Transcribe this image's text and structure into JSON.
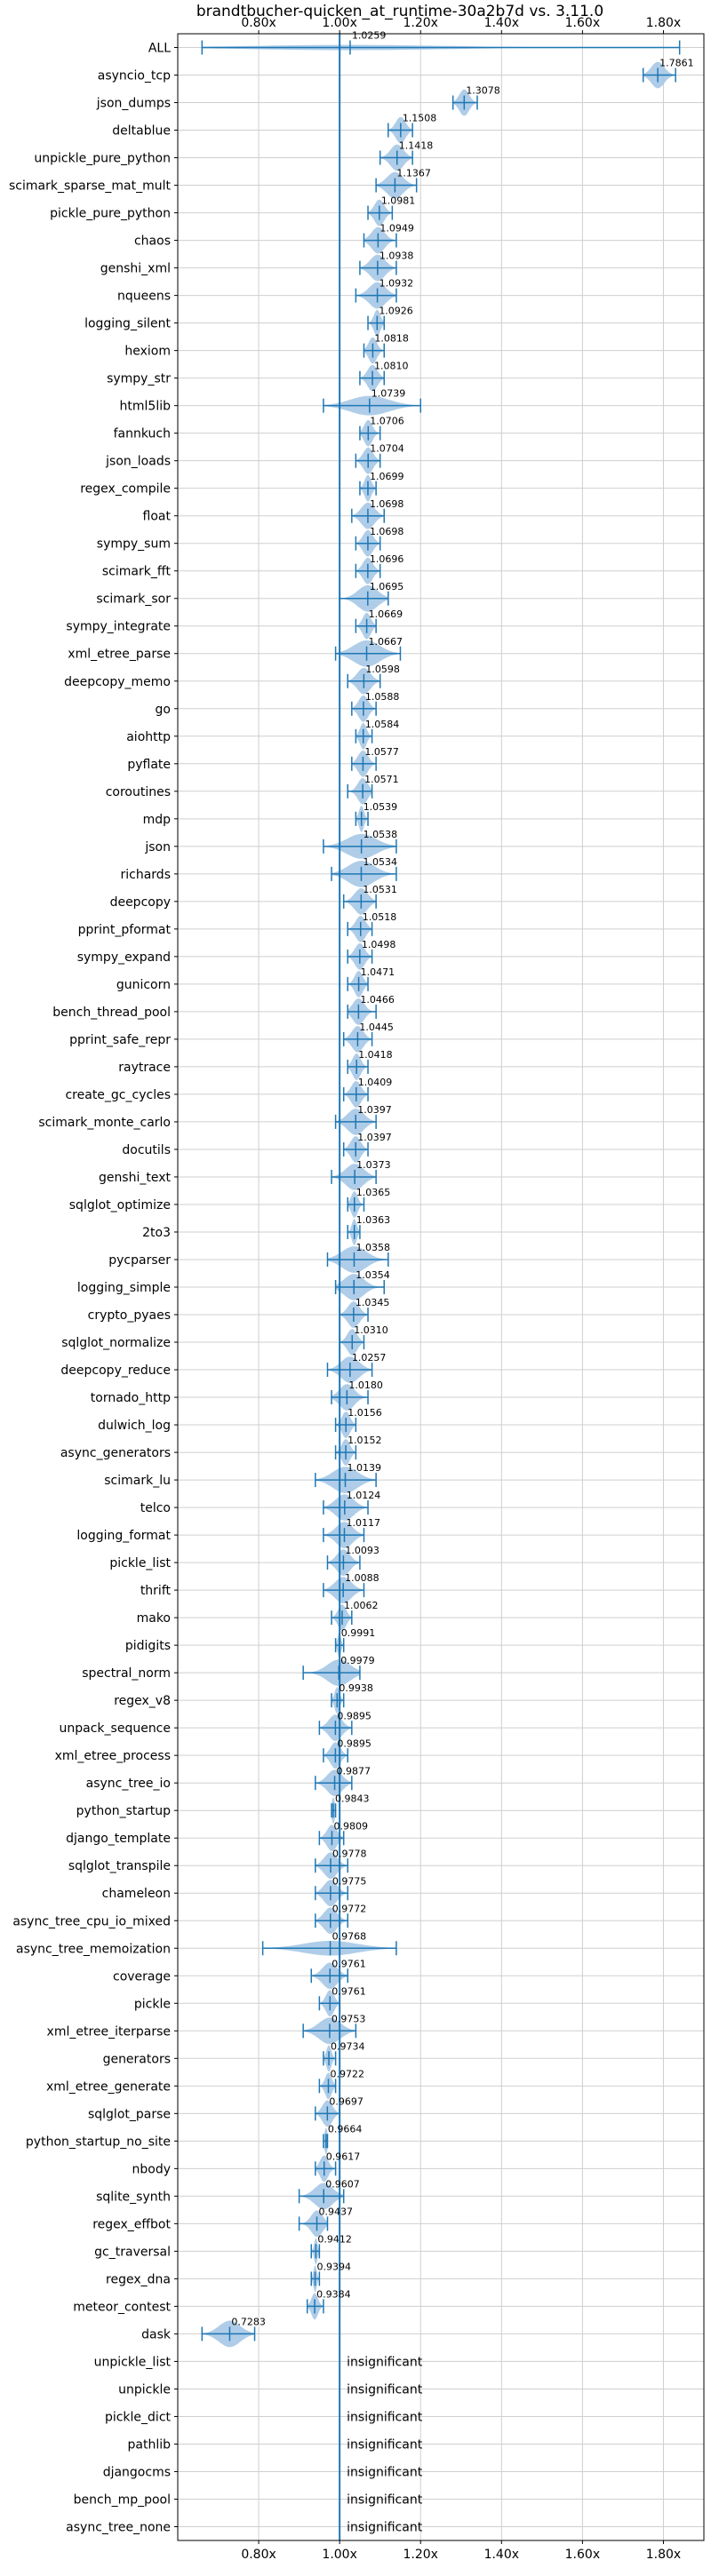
{
  "chart_data": {
    "type": "violin",
    "title": "brandtbucher-quicken_at_runtime-30a2b7d vs. 3.11.0",
    "xlim": [
      0.6,
      1.9
    ],
    "xticks": [
      "0.80x",
      "1.00x",
      "1.20x",
      "1.40x",
      "1.60x",
      "1.80x"
    ],
    "xtick_values": [
      0.8,
      1.0,
      1.2,
      1.4,
      1.6,
      1.8
    ],
    "reference_line": 1.0,
    "grid": true,
    "color": "#1f77b4",
    "fill_color": "#a6c8e6",
    "benchmarks": [
      {
        "name": "ALL",
        "label": "1.0259",
        "value": 1.0259,
        "min": 0.66,
        "max": 1.84
      },
      {
        "name": "asyncio_tcp",
        "label": "1.7861",
        "value": 1.7861,
        "min": 1.75,
        "max": 1.83
      },
      {
        "name": "json_dumps",
        "label": "1.3078",
        "value": 1.3078,
        "min": 1.28,
        "max": 1.34
      },
      {
        "name": "deltablue",
        "label": "1.1508",
        "value": 1.1508,
        "min": 1.12,
        "max": 1.18
      },
      {
        "name": "unpickle_pure_python",
        "label": "1.1418",
        "value": 1.1418,
        "min": 1.1,
        "max": 1.18
      },
      {
        "name": "scimark_sparse_mat_mult",
        "label": "1.1367",
        "value": 1.1367,
        "min": 1.09,
        "max": 1.19
      },
      {
        "name": "pickle_pure_python",
        "label": "1.0981",
        "value": 1.0981,
        "min": 1.07,
        "max": 1.13
      },
      {
        "name": "chaos",
        "label": "1.0949",
        "value": 1.0949,
        "min": 1.06,
        "max": 1.14
      },
      {
        "name": "genshi_xml",
        "label": "1.0938",
        "value": 1.0938,
        "min": 1.05,
        "max": 1.14
      },
      {
        "name": "nqueens",
        "label": "1.0932",
        "value": 1.0932,
        "min": 1.04,
        "max": 1.14
      },
      {
        "name": "logging_silent",
        "label": "1.0926",
        "value": 1.0926,
        "min": 1.07,
        "max": 1.11
      },
      {
        "name": "hexiom",
        "label": "1.0818",
        "value": 1.0818,
        "min": 1.06,
        "max": 1.11
      },
      {
        "name": "sympy_str",
        "label": "1.0810",
        "value": 1.081,
        "min": 1.05,
        "max": 1.11
      },
      {
        "name": "html5lib",
        "label": "1.0739",
        "value": 1.0739,
        "min": 0.96,
        "max": 1.2
      },
      {
        "name": "fannkuch",
        "label": "1.0706",
        "value": 1.0706,
        "min": 1.05,
        "max": 1.1
      },
      {
        "name": "json_loads",
        "label": "1.0704",
        "value": 1.0704,
        "min": 1.04,
        "max": 1.1
      },
      {
        "name": "regex_compile",
        "label": "1.0699",
        "value": 1.0699,
        "min": 1.05,
        "max": 1.09
      },
      {
        "name": "float",
        "label": "1.0698",
        "value": 1.0698,
        "min": 1.03,
        "max": 1.11
      },
      {
        "name": "sympy_sum",
        "label": "1.0698",
        "value": 1.0698,
        "min": 1.04,
        "max": 1.1
      },
      {
        "name": "scimark_fft",
        "label": "1.0696",
        "value": 1.0696,
        "min": 1.04,
        "max": 1.1
      },
      {
        "name": "scimark_sor",
        "label": "1.0695",
        "value": 1.0695,
        "min": 1.0,
        "max": 1.12
      },
      {
        "name": "sympy_integrate",
        "label": "1.0669",
        "value": 1.0669,
        "min": 1.04,
        "max": 1.09
      },
      {
        "name": "xml_etree_parse",
        "label": "1.0667",
        "value": 1.0667,
        "min": 0.99,
        "max": 1.15
      },
      {
        "name": "deepcopy_memo",
        "label": "1.0598",
        "value": 1.0598,
        "min": 1.02,
        "max": 1.1
      },
      {
        "name": "go",
        "label": "1.0588",
        "value": 1.0588,
        "min": 1.03,
        "max": 1.09
      },
      {
        "name": "aiohttp",
        "label": "1.0584",
        "value": 1.0584,
        "min": 1.04,
        "max": 1.08
      },
      {
        "name": "pyflate",
        "label": "1.0577",
        "value": 1.0577,
        "min": 1.03,
        "max": 1.09
      },
      {
        "name": "coroutines",
        "label": "1.0571",
        "value": 1.0571,
        "min": 1.02,
        "max": 1.08
      },
      {
        "name": "mdp",
        "label": "1.0539",
        "value": 1.0539,
        "min": 1.04,
        "max": 1.07
      },
      {
        "name": "json",
        "label": "1.0538",
        "value": 1.0538,
        "min": 0.96,
        "max": 1.14
      },
      {
        "name": "richards",
        "label": "1.0534",
        "value": 1.0534,
        "min": 0.98,
        "max": 1.14
      },
      {
        "name": "deepcopy",
        "label": "1.0531",
        "value": 1.0531,
        "min": 1.01,
        "max": 1.09
      },
      {
        "name": "pprint_pformat",
        "label": "1.0518",
        "value": 1.0518,
        "min": 1.02,
        "max": 1.08
      },
      {
        "name": "sympy_expand",
        "label": "1.0498",
        "value": 1.0498,
        "min": 1.02,
        "max": 1.08
      },
      {
        "name": "gunicorn",
        "label": "1.0471",
        "value": 1.0471,
        "min": 1.02,
        "max": 1.07
      },
      {
        "name": "bench_thread_pool",
        "label": "1.0466",
        "value": 1.0466,
        "min": 1.02,
        "max": 1.09
      },
      {
        "name": "pprint_safe_repr",
        "label": "1.0445",
        "value": 1.0445,
        "min": 1.01,
        "max": 1.08
      },
      {
        "name": "raytrace",
        "label": "1.0418",
        "value": 1.0418,
        "min": 1.02,
        "max": 1.07
      },
      {
        "name": "create_gc_cycles",
        "label": "1.0409",
        "value": 1.0409,
        "min": 1.01,
        "max": 1.07
      },
      {
        "name": "scimark_monte_carlo",
        "label": "1.0397",
        "value": 1.0397,
        "min": 0.99,
        "max": 1.09
      },
      {
        "name": "docutils",
        "label": "1.0397",
        "value": 1.0397,
        "min": 1.01,
        "max": 1.07
      },
      {
        "name": "genshi_text",
        "label": "1.0373",
        "value": 1.0373,
        "min": 0.98,
        "max": 1.09
      },
      {
        "name": "sqlglot_optimize",
        "label": "1.0365",
        "value": 1.0365,
        "min": 1.02,
        "max": 1.06
      },
      {
        "name": "2to3",
        "label": "1.0363",
        "value": 1.0363,
        "min": 1.02,
        "max": 1.05
      },
      {
        "name": "pycparser",
        "label": "1.0358",
        "value": 1.0358,
        "min": 0.97,
        "max": 1.12
      },
      {
        "name": "logging_simple",
        "label": "1.0354",
        "value": 1.0354,
        "min": 0.99,
        "max": 1.11
      },
      {
        "name": "crypto_pyaes",
        "label": "1.0345",
        "value": 1.0345,
        "min": 1.0,
        "max": 1.07
      },
      {
        "name": "sqlglot_normalize",
        "label": "1.0310",
        "value": 1.031,
        "min": 1.0,
        "max": 1.06
      },
      {
        "name": "deepcopy_reduce",
        "label": "1.0257",
        "value": 1.0257,
        "min": 0.97,
        "max": 1.08
      },
      {
        "name": "tornado_http",
        "label": "1.0180",
        "value": 1.018,
        "min": 0.98,
        "max": 1.07
      },
      {
        "name": "dulwich_log",
        "label": "1.0156",
        "value": 1.0156,
        "min": 0.99,
        "max": 1.04
      },
      {
        "name": "async_generators",
        "label": "1.0152",
        "value": 1.0152,
        "min": 0.99,
        "max": 1.04
      },
      {
        "name": "scimark_lu",
        "label": "1.0139",
        "value": 1.0139,
        "min": 0.94,
        "max": 1.09
      },
      {
        "name": "telco",
        "label": "1.0124",
        "value": 1.0124,
        "min": 0.96,
        "max": 1.07
      },
      {
        "name": "logging_format",
        "label": "1.0117",
        "value": 1.0117,
        "min": 0.96,
        "max": 1.06
      },
      {
        "name": "pickle_list",
        "label": "1.0093",
        "value": 1.0093,
        "min": 0.97,
        "max": 1.05
      },
      {
        "name": "thrift",
        "label": "1.0088",
        "value": 1.0088,
        "min": 0.96,
        "max": 1.06
      },
      {
        "name": "mako",
        "label": "1.0062",
        "value": 1.0062,
        "min": 0.98,
        "max": 1.03
      },
      {
        "name": "pidigits",
        "label": "0.9991",
        "value": 0.9991,
        "min": 0.99,
        "max": 1.01
      },
      {
        "name": "spectral_norm",
        "label": "0.9979",
        "value": 0.9979,
        "min": 0.91,
        "max": 1.05
      },
      {
        "name": "regex_v8",
        "label": "0.9938",
        "value": 0.9938,
        "min": 0.98,
        "max": 1.01
      },
      {
        "name": "unpack_sequence",
        "label": "0.9895",
        "value": 0.9895,
        "min": 0.95,
        "max": 1.03
      },
      {
        "name": "xml_etree_process",
        "label": "0.9895",
        "value": 0.9895,
        "min": 0.96,
        "max": 1.02
      },
      {
        "name": "async_tree_io",
        "label": "0.9877",
        "value": 0.9877,
        "min": 0.94,
        "max": 1.03
      },
      {
        "name": "python_startup",
        "label": "0.9843",
        "value": 0.9843,
        "min": 0.98,
        "max": 0.99
      },
      {
        "name": "django_template",
        "label": "0.9809",
        "value": 0.9809,
        "min": 0.95,
        "max": 1.01
      },
      {
        "name": "sqlglot_transpile",
        "label": "0.9778",
        "value": 0.9778,
        "min": 0.94,
        "max": 1.02
      },
      {
        "name": "chameleon",
        "label": "0.9775",
        "value": 0.9775,
        "min": 0.94,
        "max": 1.02
      },
      {
        "name": "async_tree_cpu_io_mixed",
        "label": "0.9772",
        "value": 0.9772,
        "min": 0.94,
        "max": 1.02
      },
      {
        "name": "async_tree_memoization",
        "label": "0.9768",
        "value": 0.9768,
        "min": 0.81,
        "max": 1.14
      },
      {
        "name": "coverage",
        "label": "0.9761",
        "value": 0.9761,
        "min": 0.93,
        "max": 1.02
      },
      {
        "name": "pickle",
        "label": "0.9761",
        "value": 0.9761,
        "min": 0.95,
        "max": 1.0
      },
      {
        "name": "xml_etree_iterparse",
        "label": "0.9753",
        "value": 0.9753,
        "min": 0.91,
        "max": 1.04
      },
      {
        "name": "generators",
        "label": "0.9734",
        "value": 0.9734,
        "min": 0.96,
        "max": 0.99
      },
      {
        "name": "xml_etree_generate",
        "label": "0.9722",
        "value": 0.9722,
        "min": 0.95,
        "max": 0.99
      },
      {
        "name": "sqlglot_parse",
        "label": "0.9697",
        "value": 0.9697,
        "min": 0.94,
        "max": 1.0
      },
      {
        "name": "python_startup_no_site",
        "label": "0.9664",
        "value": 0.9664,
        "min": 0.96,
        "max": 0.97
      },
      {
        "name": "nbody",
        "label": "0.9617",
        "value": 0.9617,
        "min": 0.94,
        "max": 0.99
      },
      {
        "name": "sqlite_synth",
        "label": "0.9607",
        "value": 0.9607,
        "min": 0.9,
        "max": 1.01
      },
      {
        "name": "regex_effbot",
        "label": "0.9437",
        "value": 0.9437,
        "min": 0.9,
        "max": 0.97
      },
      {
        "name": "gc_traversal",
        "label": "0.9412",
        "value": 0.9412,
        "min": 0.93,
        "max": 0.95
      },
      {
        "name": "regex_dna",
        "label": "0.9394",
        "value": 0.9394,
        "min": 0.93,
        "max": 0.95
      },
      {
        "name": "meteor_contest",
        "label": "0.9384",
        "value": 0.9384,
        "min": 0.92,
        "max": 0.96
      },
      {
        "name": "dask",
        "label": "0.7283",
        "value": 0.7283,
        "min": 0.66,
        "max": 0.79
      },
      {
        "name": "unpickle_list",
        "label": "insignificant",
        "value": null,
        "min": null,
        "max": null
      },
      {
        "name": "unpickle",
        "label": "insignificant",
        "value": null,
        "min": null,
        "max": null
      },
      {
        "name": "pickle_dict",
        "label": "insignificant",
        "value": null,
        "min": null,
        "max": null
      },
      {
        "name": "pathlib",
        "label": "insignificant",
        "value": null,
        "min": null,
        "max": null
      },
      {
        "name": "djangocms",
        "label": "insignificant",
        "value": null,
        "min": null,
        "max": null
      },
      {
        "name": "bench_mp_pool",
        "label": "insignificant",
        "value": null,
        "min": null,
        "max": null
      },
      {
        "name": "async_tree_none",
        "label": "insignificant",
        "value": null,
        "min": null,
        "max": null
      }
    ]
  }
}
